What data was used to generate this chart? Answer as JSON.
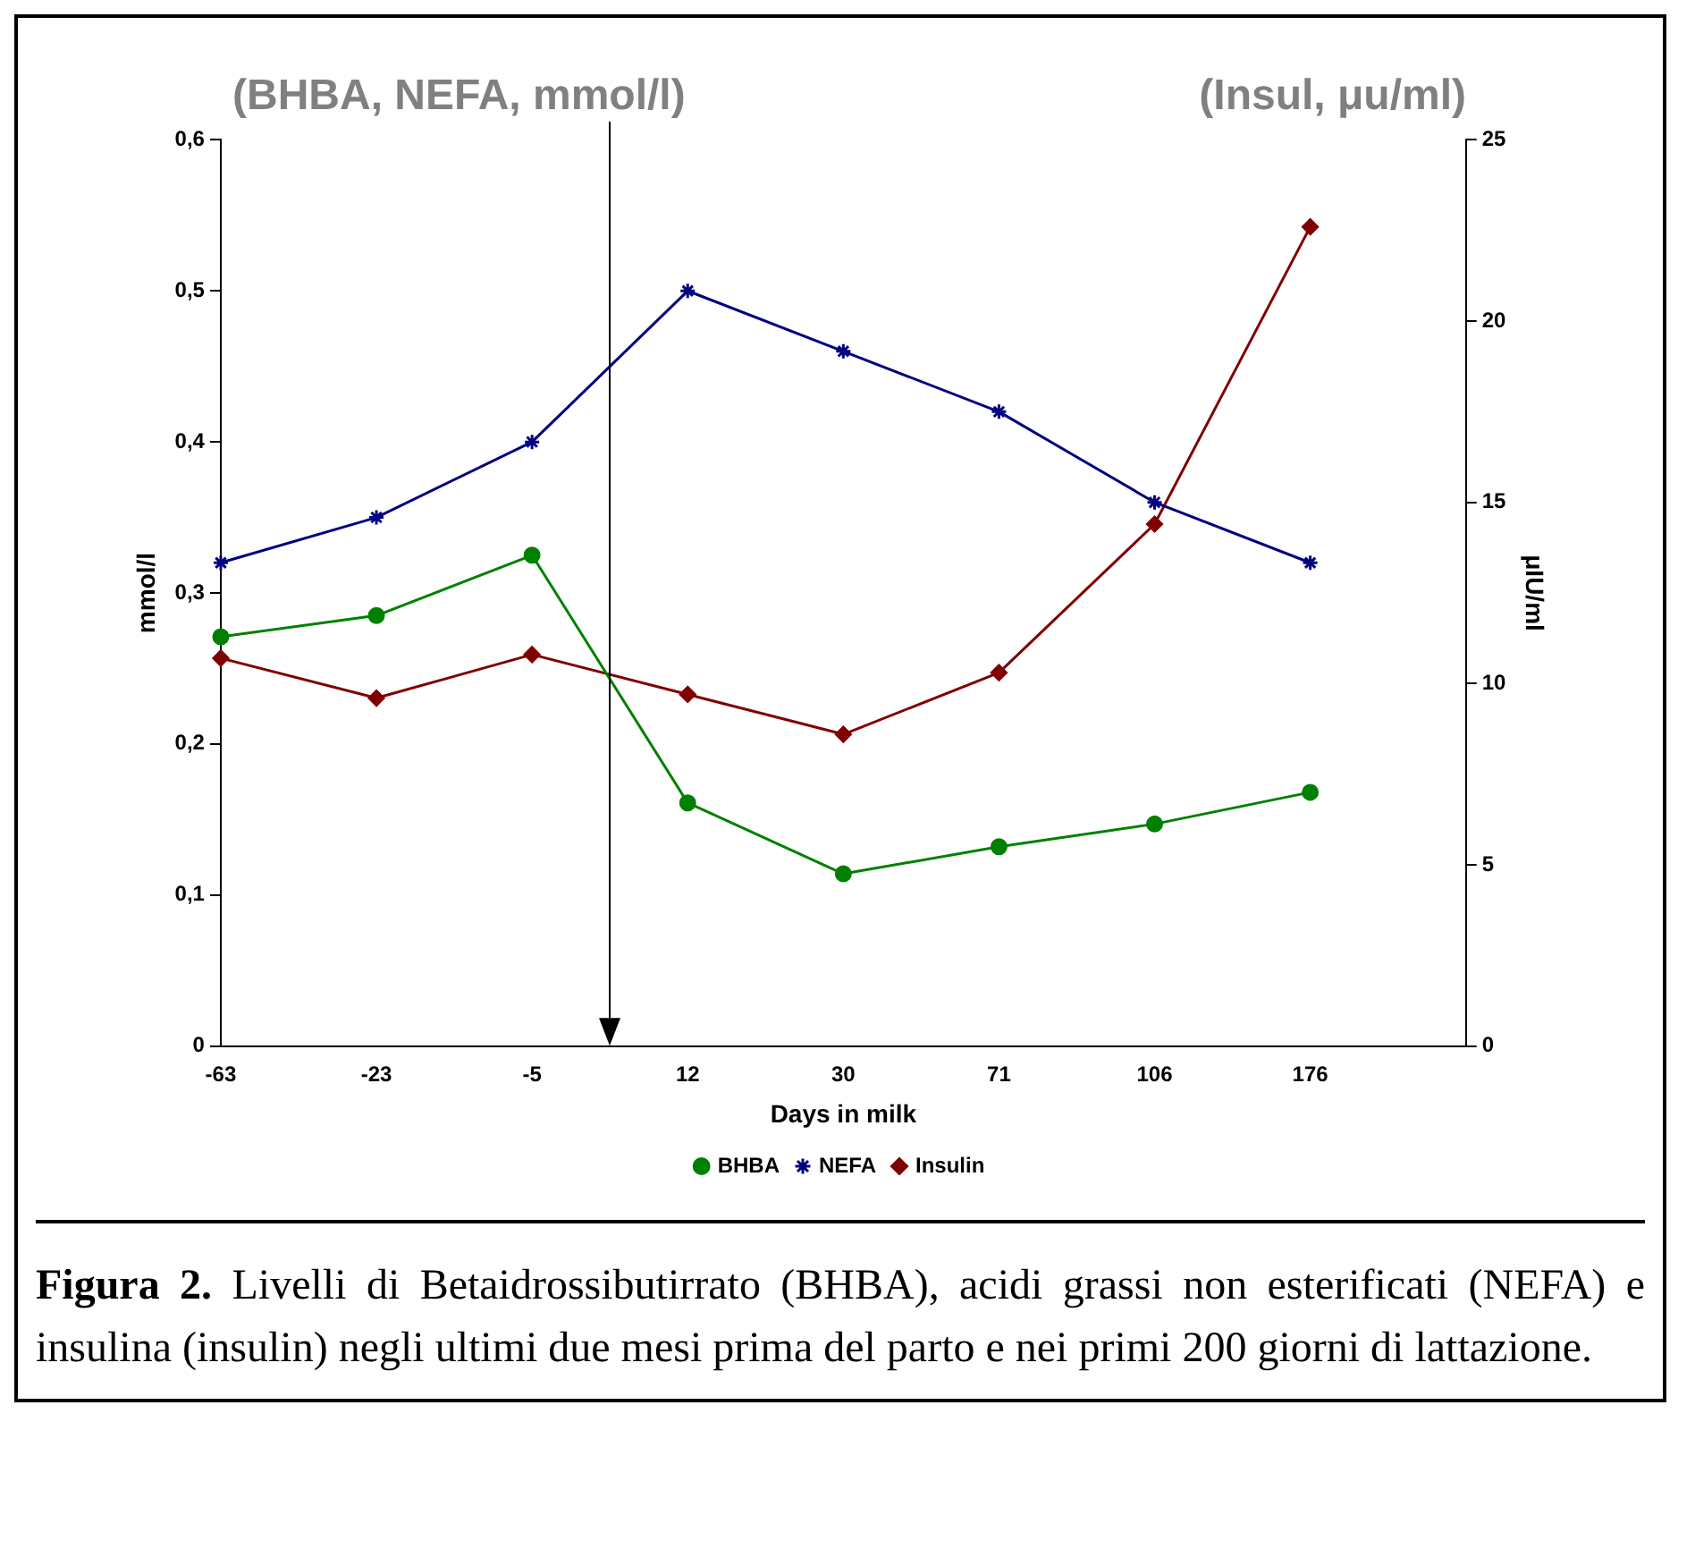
{
  "chart_data": {
    "type": "line",
    "xlabel": "Days in milk",
    "ylabel": "mmol/l",
    "y2label": "μIU/ml",
    "categories": [
      "-63",
      "-23",
      "-5",
      "12",
      "30",
      "71",
      "106",
      "176",
      null
    ],
    "series": [
      {
        "name": "BHBA",
        "color": "#008000",
        "marker": "circle",
        "values": [
          0.271,
          0.285,
          0.325,
          0.161,
          0.114,
          0.132,
          0.147,
          0.168,
          null
        ]
      },
      {
        "name": "NEFA",
        "color": "#000080",
        "marker": "cross",
        "values": [
          0.32,
          0.35,
          0.4,
          0.5,
          0.46,
          0.42,
          0.36,
          0.32,
          null
        ]
      },
      {
        "name": "Insulin",
        "color": "#800000",
        "marker": "diamond",
        "axis": "y2",
        "values": [
          10.7,
          9.6,
          10.8,
          9.7,
          8.6,
          10.3,
          14.4,
          22.6,
          null
        ]
      }
    ],
    "ylim": [
      0,
      0.6
    ],
    "yticks": [
      {
        "value": 0,
        "label": "0"
      },
      {
        "value": 0.1,
        "label": "0,1"
      },
      {
        "value": 0.2,
        "label": "0,2"
      },
      {
        "value": 0.3,
        "label": "0,3"
      },
      {
        "value": 0.4,
        "label": "0,4"
      },
      {
        "value": 0.5,
        "label": "0,5"
      },
      {
        "value": 0.6,
        "label": "0,6"
      }
    ],
    "y2lim": [
      0,
      25
    ],
    "y2ticks": [
      0,
      5,
      10,
      15,
      20,
      25
    ],
    "grid": false,
    "legend": "bottom",
    "annotations": [
      "(BHBA, NEFA, mmol/l)",
      "(Insul, μu/ml)",
      "Figura 2. Livelli di Betaidrossibutirrato (BHBA), acidi grassi non esterificati (NEFA) e insulina (insulin) negli ultimi due mesi prima del parto e nei primi 200 giorni di lattazione."
    ]
  }
}
